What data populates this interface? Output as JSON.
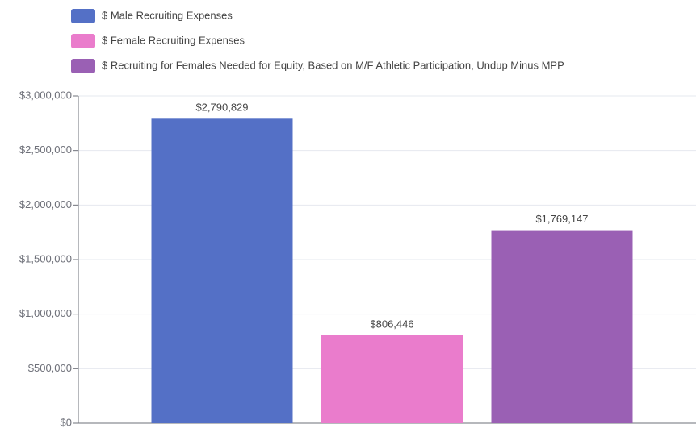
{
  "chart_data": {
    "type": "bar",
    "series": [
      {
        "name": "$ Male Recruiting Expenses",
        "color": "#5470c6",
        "values": [
          2790829
        ],
        "value_labels": [
          "$2,790,829"
        ]
      },
      {
        "name": "$ Female Recruiting Expenses",
        "color": "#ea7ccc",
        "values": [
          806446
        ],
        "value_labels": [
          "$806,446"
        ]
      },
      {
        "name": "$ Recruiting for Females Needed for Equity, Based on M/F Athletic Participation, Undup Minus MPP",
        "color": "#9a60b4",
        "values": [
          1769147
        ],
        "value_labels": [
          "$1,769,147"
        ]
      }
    ],
    "ylim": [
      0,
      3000000
    ],
    "yticks": [
      {
        "value": 0,
        "label": "$0"
      },
      {
        "value": 500000,
        "label": "$500,000"
      },
      {
        "value": 1000000,
        "label": "$1,000,000"
      },
      {
        "value": 1500000,
        "label": "$1,500,000"
      },
      {
        "value": 2000000,
        "label": "$2,000,000"
      },
      {
        "value": 2500000,
        "label": "$2,500,000"
      },
      {
        "value": 3000000,
        "label": "$3,000,000"
      }
    ],
    "grid": true,
    "legend": "top-left"
  }
}
